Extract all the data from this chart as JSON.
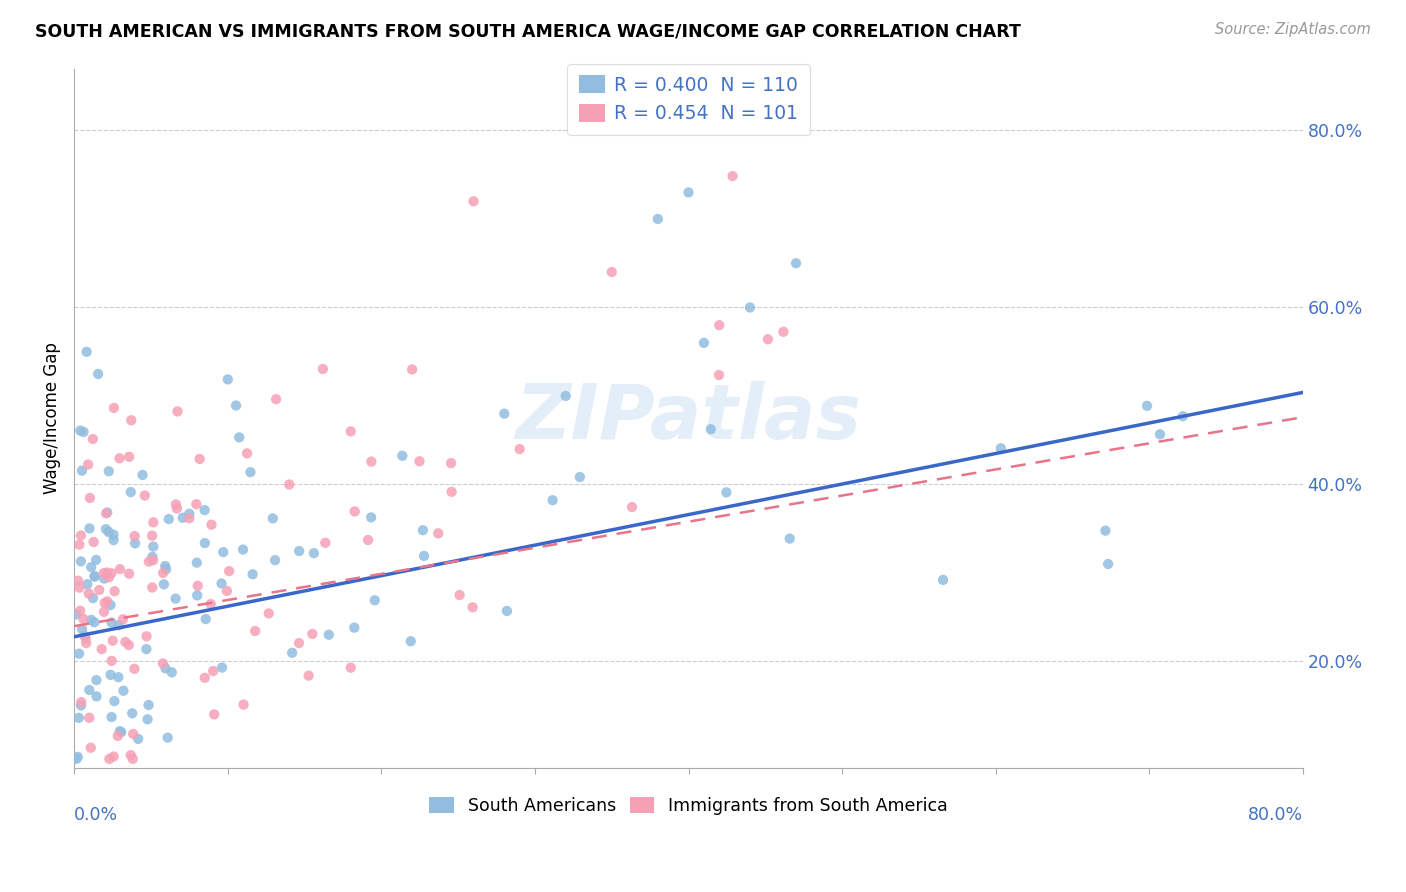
{
  "title": "SOUTH AMERICAN VS IMMIGRANTS FROM SOUTH AMERICA WAGE/INCOME GAP CORRELATION CHART",
  "source": "Source: ZipAtlas.com",
  "ylabel": "Wage/Income Gap",
  "blue_color": "#92BDE0",
  "pink_color": "#F5A0B5",
  "blue_line_color": "#3A67C8",
  "pink_line_color": "#E8748A",
  "pink_line_dash": "#D4A0A8",
  "watermark": "ZIPatlas",
  "watermark_color": "#A8C8E8",
  "legend_label1": "R = 0.400  N = 110",
  "legend_label2": "R = 0.454  N = 101",
  "bottom_label1": "South Americans",
  "bottom_label2": "Immigrants from South America",
  "xlim": [
    0.0,
    0.8
  ],
  "ylim": [
    0.08,
    0.87
  ],
  "xpct_left": "0.0%",
  "xpct_right": "80.0%",
  "yticks": [
    0.2,
    0.4,
    0.6,
    0.8
  ],
  "yticklabels": [
    "20.0%",
    "40.0%",
    "60.0%",
    "80.0%"
  ]
}
